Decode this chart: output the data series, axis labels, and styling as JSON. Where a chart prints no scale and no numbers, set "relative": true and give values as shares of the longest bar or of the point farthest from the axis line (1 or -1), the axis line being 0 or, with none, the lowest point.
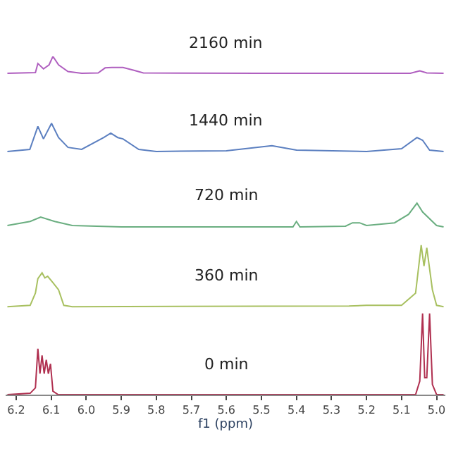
{
  "chart_data": {
    "type": "line",
    "relative": true,
    "xlabel": "f1 (ppm)",
    "xlim": [
      6.23,
      4.975
    ],
    "xticks": [
      6.2,
      6.1,
      {
        "value": 6.0,
        "label": "6.0"
      },
      5.9,
      5.8,
      5.7,
      5.6,
      5.5,
      5.4,
      5.3,
      5.2,
      5.1,
      {
        "value": 5.0,
        "label": "5.0"
      }
    ],
    "grid": false,
    "legend": false,
    "marker": "none",
    "line_style": "solid",
    "tick_labels": "x",
    "series": [
      {
        "name": "2160 min",
        "color": "#b060c0",
        "x": [
          6.225,
          6.145,
          6.138,
          6.122,
          6.106,
          6.095,
          6.079,
          6.052,
          6.013,
          5.966,
          5.946,
          5.927,
          5.895,
          5.864,
          5.837,
          5.505,
          5.075,
          5.048,
          5.028,
          4.98
        ],
        "values": [
          0.95,
          0.952,
          0.979,
          0.963,
          0.975,
          1.0,
          0.975,
          0.955,
          0.95,
          0.951,
          0.966,
          0.967,
          0.967,
          0.959,
          0.951,
          0.95,
          0.95,
          0.957,
          0.951,
          0.95
        ]
      },
      {
        "name": "1440 min",
        "color": "#5b7fc0",
        "x": [
          6.225,
          6.161,
          6.138,
          6.122,
          6.099,
          6.079,
          6.052,
          6.013,
          5.95,
          5.93,
          5.91,
          5.895,
          5.85,
          5.8,
          5.6,
          5.47,
          5.4,
          5.2,
          5.1,
          5.056,
          5.04,
          5.02,
          4.98
        ],
        "values": [
          0.719,
          0.725,
          0.793,
          0.756,
          0.802,
          0.76,
          0.731,
          0.725,
          0.76,
          0.773,
          0.76,
          0.756,
          0.725,
          0.719,
          0.721,
          0.736,
          0.723,
          0.719,
          0.727,
          0.76,
          0.752,
          0.723,
          0.719
        ]
      },
      {
        "name": "720 min",
        "color": "#6aae80",
        "x": [
          6.225,
          6.16,
          6.13,
          6.09,
          6.04,
          5.9,
          5.41,
          5.4,
          5.39,
          5.26,
          5.24,
          5.22,
          5.2,
          5.12,
          5.08,
          5.056,
          5.04,
          5.0,
          4.98
        ],
        "values": [
          0.5,
          0.512,
          0.525,
          0.512,
          0.5,
          0.496,
          0.496,
          0.512,
          0.496,
          0.498,
          0.508,
          0.508,
          0.5,
          0.508,
          0.533,
          0.566,
          0.54,
          0.5,
          0.496
        ]
      },
      {
        "name": "360 min",
        "color": "#a8c060",
        "x": [
          6.225,
          6.16,
          6.145,
          6.138,
          6.126,
          6.118,
          6.11,
          6.095,
          6.079,
          6.064,
          6.04,
          5.25,
          5.2,
          5.1,
          5.06,
          5.044,
          5.036,
          5.028,
          5.012,
          5.0,
          4.98
        ],
        "values": [
          0.26,
          0.264,
          0.3,
          0.343,
          0.36,
          0.345,
          0.35,
          0.331,
          0.31,
          0.264,
          0.26,
          0.262,
          0.264,
          0.264,
          0.3,
          0.442,
          0.38,
          0.434,
          0.31,
          0.264,
          0.26
        ]
      },
      {
        "name": "0 min",
        "color": "#b03050",
        "x": [
          6.225,
          6.16,
          6.145,
          6.138,
          6.132,
          6.126,
          6.12,
          6.114,
          6.108,
          6.102,
          6.095,
          6.08,
          5.06,
          5.048,
          5.04,
          5.034,
          5.028,
          5.02,
          5.012,
          5.0,
          4.98
        ],
        "values": [
          0.0,
          0.004,
          0.02,
          0.136,
          0.062,
          0.116,
          0.062,
          0.103,
          0.062,
          0.091,
          0.01,
          0.0,
          0.0,
          0.04,
          0.24,
          0.05,
          0.05,
          0.24,
          0.03,
          0.0,
          0.0
        ]
      }
    ]
  }
}
